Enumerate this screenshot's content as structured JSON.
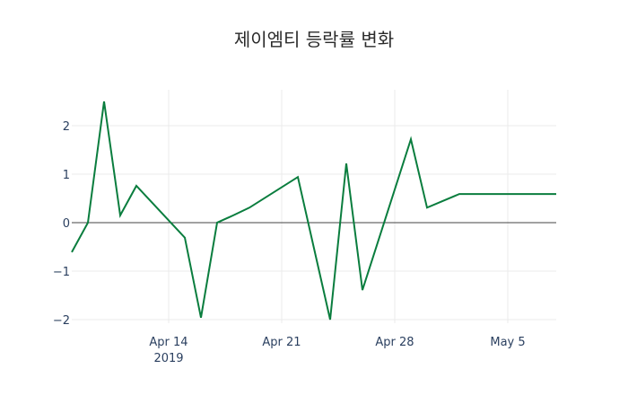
{
  "chart_data": {
    "type": "line",
    "title": "제이엠티 등락률 변화",
    "xlabel": "",
    "ylabel": "",
    "x": [
      "2019-04-08",
      "2019-04-09",
      "2019-04-10",
      "2019-04-11",
      "2019-04-12",
      "2019-04-15",
      "2019-04-16",
      "2019-04-17",
      "2019-04-18",
      "2019-04-19",
      "2019-04-22",
      "2019-04-23",
      "2019-04-24",
      "2019-04-25",
      "2019-04-26",
      "2019-04-29",
      "2019-04-30",
      "2019-05-01",
      "2019-05-02",
      "2019-05-03",
      "2019-05-06",
      "2019-05-07",
      "2019-05-08"
    ],
    "series": [
      {
        "name": "등락률",
        "color": "#0a7d3e",
        "values": [
          -0.61,
          0.0,
          2.5,
          0.15,
          0.76,
          -0.31,
          -1.96,
          0.0,
          0.15,
          0.31,
          0.94,
          -0.53,
          -2.0,
          1.22,
          -1.39,
          1.72,
          0.31,
          0.45,
          0.59,
          0.59,
          0.59,
          0.59,
          0.59
        ]
      }
    ],
    "x_ticks": [
      {
        "label": "Apr 14",
        "sublabel": "2019",
        "date": "2019-04-14"
      },
      {
        "label": "Apr 21",
        "sublabel": "",
        "date": "2019-04-21"
      },
      {
        "label": "Apr 28",
        "sublabel": "",
        "date": "2019-04-28"
      },
      {
        "label": "May 5",
        "sublabel": "",
        "date": "2019-05-05"
      }
    ],
    "y_ticks": [
      {
        "label": "2",
        "value": 2
      },
      {
        "label": "1",
        "value": 1
      },
      {
        "label": "0",
        "value": 0
      },
      {
        "label": "−1",
        "value": -1
      },
      {
        "label": "−2",
        "value": -2
      }
    ],
    "ylim": [
      -2.07,
      2.74
    ],
    "xlim": [
      "2019-04-08",
      "2019-05-08"
    ],
    "grid": true,
    "legend": "none"
  }
}
